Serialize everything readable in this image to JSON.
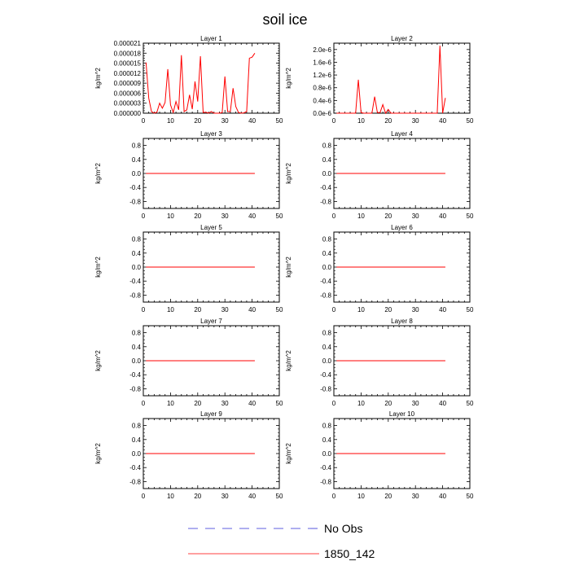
{
  "title": "soil ice",
  "legend": {
    "entries": [
      {
        "label": "No Obs",
        "color": "#2b2bd6",
        "dash": "dashed"
      },
      {
        "label": "1850_142",
        "color": "#ff0000",
        "dash": "solid"
      }
    ]
  },
  "chart_data": [
    {
      "type": "line",
      "title": "Layer 1",
      "ylabel": "kg/m^2",
      "xlim": [
        0,
        50
      ],
      "ylim": [
        0,
        2.1e-05
      ],
      "xticks": [
        0,
        10,
        20,
        30,
        40,
        50
      ],
      "xtick_labels": [
        "0",
        "10",
        "20",
        "30",
        "40",
        "50"
      ],
      "yticks": [
        0,
        3e-06,
        6e-06,
        9e-06,
        1.2e-05,
        1.5e-05,
        1.8e-05,
        2.1e-05
      ],
      "ytick_labels": [
        "0.000000",
        "0.000003",
        "0.000006",
        "0.000009",
        "0.000012",
        "0.000015",
        "0.000018",
        "0.000021"
      ],
      "series": [
        {
          "color": "#ff0000",
          "x": [
            1,
            2,
            3,
            4,
            5,
            6,
            7,
            8,
            9,
            10,
            11,
            12,
            13,
            14,
            15,
            16,
            17,
            18,
            19,
            20,
            21,
            22,
            23,
            24,
            25,
            26,
            27,
            28,
            29,
            30,
            31,
            32,
            33,
            34,
            35,
            36,
            37,
            38,
            39,
            40,
            41
          ],
          "y": [
            1.52e-05,
            4.5e-06,
            5e-07,
            0,
            3e-07,
            3e-06,
            1.5e-06,
            3.2e-06,
            1.32e-05,
            2.5e-06,
            2e-07,
            3.5e-06,
            1e-06,
            1.74e-05,
            5e-07,
            1e-06,
            5.5e-06,
            1.2e-06,
            9.5e-06,
            3.5e-06,
            1.71e-05,
            2e-07,
            3e-07,
            0,
            5e-07,
            0,
            0,
            0,
            2e-07,
            1.1e-05,
            5e-07,
            5e-07,
            7.5e-06,
            2e-06,
            2e-07,
            0,
            1e-07,
            5e-07,
            1.65e-05,
            1.68e-05,
            1.8e-05
          ]
        }
      ]
    },
    {
      "type": "line",
      "title": "Layer 2",
      "ylabel": "kg/m^2",
      "xlim": [
        0,
        50
      ],
      "ylim": [
        0,
        2.2e-06
      ],
      "xticks": [
        0,
        10,
        20,
        30,
        40,
        50
      ],
      "xtick_labels": [
        "0",
        "10",
        "20",
        "30",
        "40",
        "50"
      ],
      "yticks": [
        0,
        4e-07,
        8e-07,
        1.2e-06,
        1.6e-06,
        2e-06
      ],
      "ytick_labels": [
        "0.0e-6",
        "0.4e-6",
        "0.8e-6",
        "1.2e-6",
        "1.6e-6",
        "2.0e-6"
      ],
      "series": [
        {
          "color": "#ff0000",
          "x": [
            1,
            2,
            3,
            4,
            5,
            6,
            7,
            8,
            9,
            10,
            11,
            12,
            13,
            14,
            15,
            16,
            17,
            18,
            19,
            20,
            21,
            22,
            23,
            24,
            25,
            26,
            27,
            28,
            29,
            30,
            31,
            32,
            33,
            34,
            35,
            36,
            37,
            38,
            39,
            40,
            41
          ],
          "y": [
            0,
            0,
            0,
            0,
            0,
            0,
            0,
            0,
            1.05e-06,
            2e-08,
            0,
            0,
            0,
            0,
            5.2e-07,
            2e-08,
            2e-08,
            2.7e-07,
            0,
            1.2e-07,
            0,
            0,
            0,
            0,
            0,
            0,
            0,
            0,
            0,
            0,
            0,
            0,
            0,
            0,
            0,
            0,
            0,
            0,
            2.12e-06,
            0,
            4.8e-07
          ]
        }
      ]
    },
    {
      "type": "line",
      "title": "Layer 3",
      "ylabel": "kg/m^2",
      "xlim": [
        0,
        50
      ],
      "ylim": [
        -1,
        1
      ],
      "xticks": [
        0,
        10,
        20,
        30,
        40,
        50
      ],
      "xtick_labels": [
        "0",
        "10",
        "20",
        "30",
        "40",
        "50"
      ],
      "yticks": [
        0.8,
        0.4,
        0,
        -0.4,
        -0.8
      ],
      "ytick_labels": [
        "0.8",
        "0.4",
        "0.0",
        "-0.4",
        "-0.8"
      ],
      "series": [
        {
          "color": "#ff0000",
          "x": [
            1,
            41
          ],
          "y": [
            0,
            0
          ]
        }
      ]
    },
    {
      "type": "line",
      "title": "Layer 4",
      "ylabel": "kg/m^2",
      "xlim": [
        0,
        50
      ],
      "ylim": [
        -1,
        1
      ],
      "xticks": [
        0,
        10,
        20,
        30,
        40,
        50
      ],
      "xtick_labels": [
        "0",
        "10",
        "20",
        "30",
        "40",
        "50"
      ],
      "yticks": [
        0.8,
        0.4,
        0,
        -0.4,
        -0.8
      ],
      "ytick_labels": [
        "0.8",
        "0.4",
        "0.0",
        "-0.4",
        "-0.8"
      ],
      "series": [
        {
          "color": "#ff0000",
          "x": [
            1,
            41
          ],
          "y": [
            0,
            0
          ]
        }
      ]
    },
    {
      "type": "line",
      "title": "Layer 5",
      "ylabel": "kg/m^2",
      "xlim": [
        0,
        50
      ],
      "ylim": [
        -1,
        1
      ],
      "xticks": [
        0,
        10,
        20,
        30,
        40,
        50
      ],
      "xtick_labels": [
        "0",
        "10",
        "20",
        "30",
        "40",
        "50"
      ],
      "yticks": [
        0.8,
        0.4,
        0,
        -0.4,
        -0.8
      ],
      "ytick_labels": [
        "0.8",
        "0.4",
        "0.0",
        "-0.4",
        "-0.8"
      ],
      "series": [
        {
          "color": "#ff0000",
          "x": [
            1,
            41
          ],
          "y": [
            0,
            0
          ]
        }
      ]
    },
    {
      "type": "line",
      "title": "Layer 6",
      "ylabel": "kg/m^2",
      "xlim": [
        0,
        50
      ],
      "ylim": [
        -1,
        1
      ],
      "xticks": [
        0,
        10,
        20,
        30,
        40,
        50
      ],
      "xtick_labels": [
        "0",
        "10",
        "20",
        "30",
        "40",
        "50"
      ],
      "yticks": [
        0.8,
        0.4,
        0,
        -0.4,
        -0.8
      ],
      "ytick_labels": [
        "0.8",
        "0.4",
        "0.0",
        "-0.4",
        "-0.8"
      ],
      "series": [
        {
          "color": "#ff0000",
          "x": [
            1,
            41
          ],
          "y": [
            0,
            0
          ]
        }
      ]
    },
    {
      "type": "line",
      "title": "Layer 7",
      "ylabel": "kg/m^2",
      "xlim": [
        0,
        50
      ],
      "ylim": [
        -1,
        1
      ],
      "xticks": [
        0,
        10,
        20,
        30,
        40,
        50
      ],
      "xtick_labels": [
        "0",
        "10",
        "20",
        "30",
        "40",
        "50"
      ],
      "yticks": [
        0.8,
        0.4,
        0,
        -0.4,
        -0.8
      ],
      "ytick_labels": [
        "0.8",
        "0.4",
        "0.0",
        "-0.4",
        "-0.8"
      ],
      "series": [
        {
          "color": "#ff0000",
          "x": [
            1,
            41
          ],
          "y": [
            0,
            0
          ]
        }
      ]
    },
    {
      "type": "line",
      "title": "Layer 8",
      "ylabel": "kg/m^2",
      "xlim": [
        0,
        50
      ],
      "ylim": [
        -1,
        1
      ],
      "xticks": [
        0,
        10,
        20,
        30,
        40,
        50
      ],
      "xtick_labels": [
        "0",
        "10",
        "20",
        "30",
        "40",
        "50"
      ],
      "yticks": [
        0.8,
        0.4,
        0,
        -0.4,
        -0.8
      ],
      "ytick_labels": [
        "0.8",
        "0.4",
        "0.0",
        "-0.4",
        "-0.8"
      ],
      "series": [
        {
          "color": "#ff0000",
          "x": [
            1,
            41
          ],
          "y": [
            0,
            0
          ]
        }
      ]
    },
    {
      "type": "line",
      "title": "Layer 9",
      "ylabel": "kg/m^2",
      "xlim": [
        0,
        50
      ],
      "ylim": [
        -1,
        1
      ],
      "xticks": [
        0,
        10,
        20,
        30,
        40,
        50
      ],
      "xtick_labels": [
        "0",
        "10",
        "20",
        "30",
        "40",
        "50"
      ],
      "yticks": [
        0.8,
        0.4,
        0,
        -0.4,
        -0.8
      ],
      "ytick_labels": [
        "0.8",
        "0.4",
        "0.0",
        "-0.4",
        "-0.8"
      ],
      "series": [
        {
          "color": "#ff0000",
          "x": [
            1,
            41
          ],
          "y": [
            0,
            0
          ]
        }
      ]
    },
    {
      "type": "line",
      "title": "Layer 10",
      "ylabel": "kg/m^2",
      "xlim": [
        0,
        50
      ],
      "ylim": [
        -1,
        1
      ],
      "xticks": [
        0,
        10,
        20,
        30,
        40,
        50
      ],
      "xtick_labels": [
        "0",
        "10",
        "20",
        "30",
        "40",
        "50"
      ],
      "yticks": [
        0.8,
        0.4,
        0,
        -0.4,
        -0.8
      ],
      "ytick_labels": [
        "0.8",
        "0.4",
        "0.0",
        "-0.4",
        "-0.8"
      ],
      "series": [
        {
          "color": "#ff0000",
          "x": [
            1,
            41
          ],
          "y": [
            0,
            0
          ]
        }
      ]
    }
  ]
}
